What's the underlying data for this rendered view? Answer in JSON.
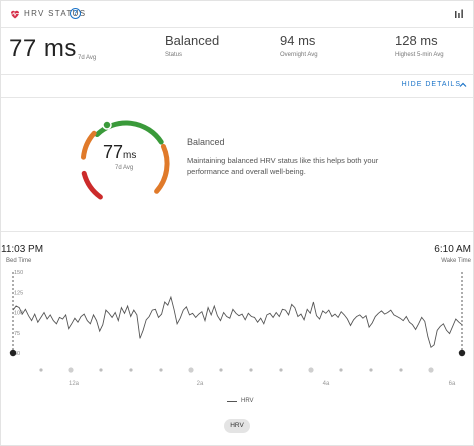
{
  "header": {
    "title": "HRV STATUS",
    "help_label": "?"
  },
  "summary": {
    "value": "77 ms",
    "value_label": "7d Avg",
    "stats": [
      {
        "value": "Balanced",
        "label": "Status"
      },
      {
        "value": "94 ms",
        "label": "Overnight Avg"
      },
      {
        "value": "128 ms",
        "label": "Highest 5-min Avg"
      }
    ]
  },
  "details_toggle": "HIDE DETAILS",
  "gauge": {
    "value": "77",
    "unit": "ms",
    "label": "7d Avg"
  },
  "status": {
    "title": "Balanced",
    "description": "Maintaining balanced HRV status like this helps both your performance and overall well-being."
  },
  "colors": {
    "green": "#3a9a3a",
    "orange": "#e07a2a",
    "red": "#cc2b2b",
    "accent": "#1a73c8",
    "line": "#555555"
  },
  "chart_data": {
    "type": "line",
    "start": {
      "time": "11:03 PM",
      "label": "Bed Time"
    },
    "end": {
      "time": "6:10 AM",
      "label": "Wake Time"
    },
    "y_ticks": [
      "150",
      "125",
      "100",
      "75",
      "50"
    ],
    "ylim": [
      50,
      150
    ],
    "x_ticks": [
      "12a",
      "2a",
      "4a",
      "6a"
    ],
    "series": [
      {
        "name": "HRV",
        "values": [
          103,
          108,
          106,
          98,
          104,
          96,
          90,
          98,
          88,
          94,
          100,
          92,
          97,
          90,
          86,
          94,
          92,
          97,
          80,
          86,
          93,
          88,
          95,
          98,
          90,
          86,
          97,
          90,
          77,
          85,
          103,
          99,
          94,
          100,
          90,
          106,
          99,
          108,
          95,
          103,
          97,
          68,
          78,
          91,
          95,
          103,
          104,
          94,
          98,
          113,
          109,
          119,
          104,
          86,
          93,
          103,
          107,
          97,
          99,
          94,
          98,
          101,
          90,
          106,
          97,
          108,
          96,
          90,
          100,
          95,
          93,
          104,
          99,
          96,
          98,
          91,
          99,
          95,
          94,
          88,
          93,
          86,
          97,
          99,
          94,
          100,
          95,
          104,
          103,
          97,
          110,
          106,
          95,
          98,
          91,
          104,
          99,
          113,
          96,
          92,
          102,
          99,
          103,
          95,
          98,
          94,
          101,
          97,
          92,
          84,
          91,
          95,
          97,
          93,
          96,
          82,
          87,
          95,
          99,
          102,
          98,
          100,
          103,
          97,
          95,
          93,
          90,
          95,
          88,
          85,
          79,
          86,
          94,
          89,
          70,
          57,
          60,
          78,
          83,
          86,
          78,
          74,
          83,
          92,
          88,
          85
        ]
      }
    ]
  },
  "legend_label": "HRV",
  "chip_label": "HRV"
}
